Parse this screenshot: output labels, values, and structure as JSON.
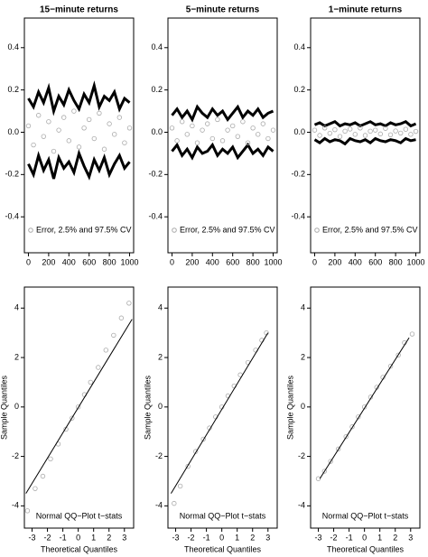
{
  "chart_data": [
    {
      "type": "line",
      "title": "15−minute returns",
      "legend": "Error, 2.5% and 97.5% CV",
      "x": [
        0,
        50,
        100,
        150,
        200,
        250,
        300,
        350,
        400,
        450,
        500,
        550,
        600,
        650,
        700,
        750,
        800,
        850,
        900,
        950,
        1000
      ],
      "series": [
        {
          "color": "#000000",
          "values": [
            0.16,
            0.12,
            0.19,
            0.14,
            0.21,
            0.1,
            0.17,
            0.13,
            0.2,
            0.15,
            0.11,
            0.18,
            0.14,
            0.22,
            0.12,
            0.17,
            0.15,
            0.19,
            0.11,
            0.16,
            0.14
          ]
        },
        {
          "color": "#000000",
          "values": [
            -0.15,
            -0.2,
            -0.11,
            -0.18,
            -0.13,
            -0.22,
            -0.12,
            -0.17,
            -0.14,
            -0.19,
            -0.1,
            -0.16,
            -0.21,
            -0.13,
            -0.18,
            -0.12,
            -0.2,
            -0.15,
            -0.11,
            -0.17,
            -0.14
          ]
        },
        {
          "color": "#aaaaaa",
          "marker": "circle",
          "values": [
            0.03,
            -0.06,
            0.08,
            -0.02,
            0.05,
            -0.09,
            0.01,
            0.07,
            -0.04,
            0.1,
            -0.07,
            0.02,
            0.06,
            -0.03,
            0.09,
            -0.08,
            0.04,
            -0.01,
            0.07,
            -0.05,
            0.02
          ]
        }
      ],
      "xlim": [
        -40,
        1040
      ],
      "xticks": [
        0,
        200,
        400,
        600,
        800,
        1000
      ],
      "ylim": [
        -0.57,
        0.54
      ],
      "yticks": [
        -0.4,
        -0.2,
        {
          "value": 0,
          "label": "0.0"
        },
        0.2,
        0.4
      ]
    },
    {
      "type": "line",
      "title": "5−minute returns",
      "legend": "Error, 2.5% and 97.5% CV",
      "x": [
        0,
        50,
        100,
        150,
        200,
        250,
        300,
        350,
        400,
        450,
        500,
        550,
        600,
        650,
        700,
        750,
        800,
        850,
        900,
        950,
        1000
      ],
      "series": [
        {
          "color": "#000000",
          "values": [
            0.08,
            0.11,
            0.07,
            0.1,
            0.06,
            0.12,
            0.09,
            0.07,
            0.11,
            0.08,
            0.1,
            0.06,
            0.09,
            0.12,
            0.07,
            0.1,
            0.08,
            0.11,
            0.07,
            0.09,
            0.1
          ]
        },
        {
          "color": "#000000",
          "values": [
            -0.09,
            -0.06,
            -0.11,
            -0.08,
            -0.12,
            -0.07,
            -0.1,
            -0.09,
            -0.06,
            -0.11,
            -0.08,
            -0.1,
            -0.07,
            -0.12,
            -0.09,
            -0.06,
            -0.1,
            -0.08,
            -0.11,
            -0.07,
            -0.09
          ]
        },
        {
          "color": "#aaaaaa",
          "marker": "circle",
          "values": [
            0.02,
            -0.04,
            0.05,
            -0.01,
            0.03,
            -0.05,
            0.01,
            0.04,
            -0.03,
            0.06,
            -0.04,
            0.01,
            0.03,
            -0.02,
            0.05,
            -0.05,
            0.02,
            -0.01,
            0.04,
            -0.03,
            0.01
          ]
        }
      ],
      "xlim": [
        -40,
        1040
      ],
      "xticks": [
        0,
        200,
        400,
        600,
        800,
        1000
      ],
      "ylim": [
        -0.57,
        0.54
      ],
      "yticks": [
        -0.4,
        -0.2,
        {
          "value": 0,
          "label": "0.0"
        },
        0.2,
        0.4
      ]
    },
    {
      "type": "line",
      "title": "1−minute returns",
      "legend": "Error, 2.5% and 97.5% CV",
      "x": [
        0,
        50,
        100,
        150,
        200,
        250,
        300,
        350,
        400,
        450,
        500,
        550,
        600,
        650,
        700,
        750,
        800,
        850,
        900,
        950,
        1000
      ],
      "series": [
        {
          "color": "#000000",
          "values": [
            0.035,
            0.045,
            0.03,
            0.04,
            0.05,
            0.03,
            0.04,
            0.035,
            0.045,
            0.03,
            0.04,
            0.05,
            0.035,
            0.04,
            0.03,
            0.045,
            0.035,
            0.04,
            0.05,
            0.03,
            0.04
          ]
        },
        {
          "color": "#000000",
          "values": [
            -0.035,
            -0.05,
            -0.03,
            -0.045,
            -0.035,
            -0.04,
            -0.055,
            -0.03,
            -0.04,
            -0.045,
            -0.035,
            -0.05,
            -0.03,
            -0.04,
            -0.045,
            -0.035,
            -0.04,
            -0.05,
            -0.03,
            -0.04,
            -0.035
          ]
        },
        {
          "color": "#aaaaaa",
          "marker": "circle",
          "values": [
            0.01,
            -0.015,
            0.02,
            -0.005,
            0.012,
            -0.02,
            0.005,
            0.015,
            -0.01,
            0.02,
            -0.015,
            0.005,
            0.01,
            -0.008,
            0.018,
            -0.012,
            0.006,
            -0.004,
            0.014,
            -0.01,
            0.004
          ]
        }
      ],
      "xlim": [
        -40,
        1040
      ],
      "xticks": [
        0,
        200,
        400,
        600,
        800,
        1000
      ],
      "ylim": [
        -0.57,
        0.54
      ],
      "yticks": [
        -0.4,
        -0.2,
        {
          "value": 0,
          "label": "0.0"
        },
        0.2,
        0.4
      ]
    },
    {
      "type": "scatter",
      "legend": "Normal QQ−Plot  t−stats",
      "xlabel": "Theoretical Quantiles",
      "ylabel": "Sample Quantiles",
      "x": [
        -3.3,
        -2.8,
        -2.3,
        -1.8,
        -1.3,
        -0.8,
        -0.4,
        0,
        0.4,
        0.8,
        1.3,
        1.8,
        2.3,
        2.8,
        3.3
      ],
      "values": [
        -4.2,
        -3.3,
        -2.8,
        -2.1,
        -1.5,
        -0.9,
        -0.45,
        0,
        0.5,
        1,
        1.6,
        2.3,
        2.9,
        3.6,
        4.2
      ],
      "color": "#aaaaaa",
      "line": {
        "color": "#000000",
        "x": [
          -3.4,
          3.5
        ],
        "values": [
          -3.5,
          3.55
        ]
      },
      "xlim": [
        -3.5,
        3.6
      ],
      "xticks": [
        -3,
        -2,
        -1,
        0,
        1,
        2,
        3
      ],
      "ylim": [
        -4.9,
        4.85
      ],
      "yticks": [
        -4,
        -2,
        0,
        2,
        4
      ]
    },
    {
      "type": "scatter",
      "legend": "Normal QQ−Plot  t−stats",
      "xlabel": "Theoretical Quantiles",
      "ylabel": "Sample Quantiles",
      "x": [
        -3.1,
        -2.7,
        -2.2,
        -1.7,
        -1.2,
        -0.8,
        -0.4,
        0,
        0.4,
        0.8,
        1.2,
        1.7,
        2.2,
        2.6,
        2.9
      ],
      "values": [
        -3.9,
        -3.2,
        -2.4,
        -1.8,
        -1.3,
        -0.85,
        -0.4,
        0,
        0.45,
        0.85,
        1.3,
        1.8,
        2.3,
        2.7,
        3
      ],
      "color": "#aaaaaa",
      "line": {
        "color": "#000000",
        "x": [
          -3.3,
          3
        ],
        "values": [
          -3.5,
          3
        ]
      },
      "xlim": [
        -3.5,
        3.6
      ],
      "xticks": [
        -3,
        -2,
        -1,
        0,
        1,
        2,
        3
      ],
      "ylim": [
        -4.9,
        4.85
      ],
      "yticks": [
        -4,
        -2,
        0,
        2,
        4
      ]
    },
    {
      "type": "scatter",
      "legend": "Normal QQ−Plot  t−stats",
      "xlabel": "Theoretical Quantiles",
      "ylabel": "Sample Quantiles",
      "x": [
        -3,
        -2.6,
        -2.2,
        -1.7,
        -1.2,
        -0.8,
        -0.4,
        0,
        0.4,
        0.8,
        1.2,
        1.7,
        2.2,
        2.6,
        3.1
      ],
      "values": [
        -2.9,
        -2.6,
        -2.2,
        -1.7,
        -1.2,
        -0.8,
        -0.4,
        0,
        0.4,
        0.8,
        1.2,
        1.65,
        2.1,
        2.6,
        2.95
      ],
      "color": "#aaaaaa",
      "line": {
        "color": "#000000",
        "x": [
          -2.9,
          2.9
        ],
        "values": [
          -2.9,
          2.8
        ]
      },
      "xlim": [
        -3.5,
        3.6
      ],
      "xticks": [
        -3,
        -2,
        -1,
        0,
        1,
        2,
        3
      ],
      "ylim": [
        -4.9,
        4.85
      ],
      "yticks": [
        -4,
        -2,
        0,
        2,
        4
      ]
    }
  ]
}
